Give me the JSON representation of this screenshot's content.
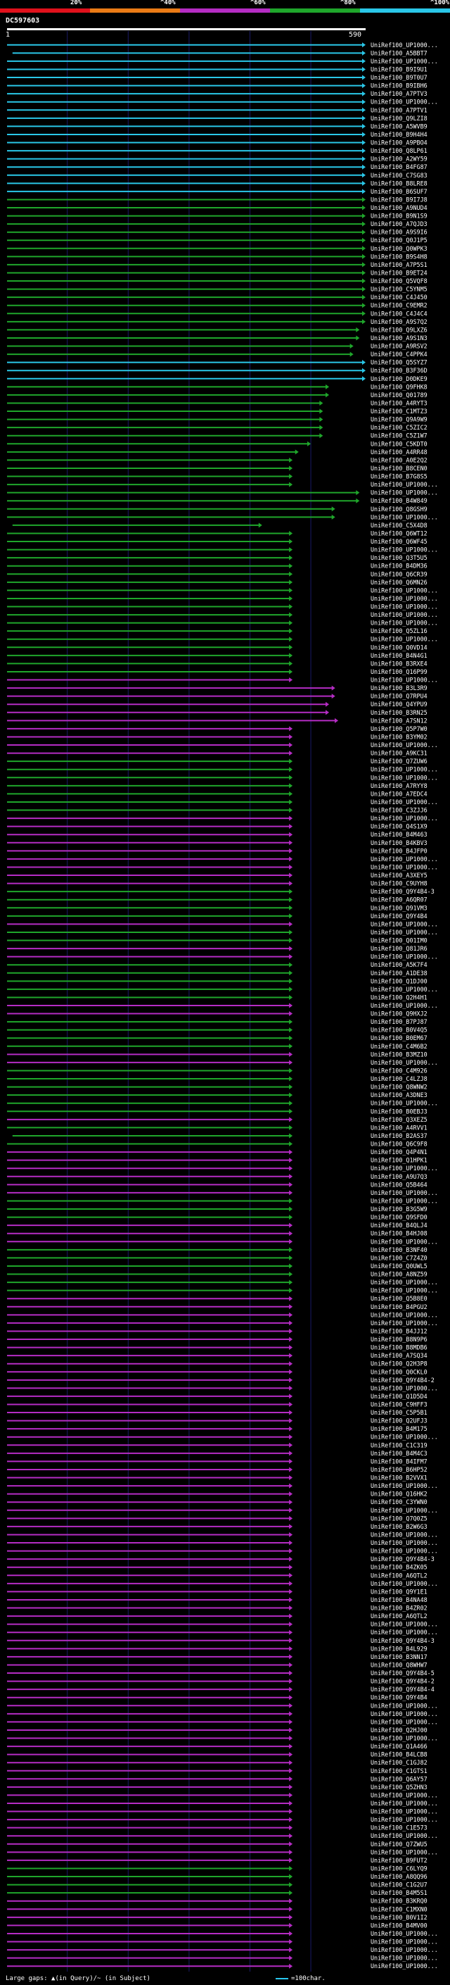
{
  "query_id": "DC597603",
  "legend": {
    "title": "Identity color scale",
    "segments": [
      {
        "label": "20%",
        "color": "#e0111c"
      },
      {
        "label": "^40%",
        "color": "#ea7b16"
      },
      {
        "label": "^60%",
        "color": "#b52cc4"
      },
      {
        "label": "^80%",
        "color": "#1fa62b"
      },
      {
        "label": "^100%",
        "color": "#2ac7e8"
      }
    ]
  },
  "footer": {
    "gap_text": "Large gaps: ▲(in Query)/~ (in Subject)",
    "scale_text": "=100char."
  },
  "chart_data": {
    "type": "alignment-overview",
    "title": "DC597603",
    "xlabel": "query position",
    "query_range": [
      1,
      590
    ],
    "start_label": "1",
    "end_label": "590",
    "colors": {
      "cyan": "#2ac7e8",
      "green": "#1fa62b",
      "magenta": "#b52cc4",
      "query": "#ffffff"
    },
    "hit_labels": [
      "UniRef100_UP1000...",
      "UniRef100_A5BBT7",
      "UniRef100_UP1000...",
      "UniRef100_B9I9U1",
      "UniRef100_B9T0U7",
      "UniRef100_B9IBH6",
      "UniRef100_A7PTV3",
      "UniRef100_UP1000...",
      "UniRef100_A7PTV1",
      "UniRef100_Q9LZI8",
      "UniRef100_A5WVB9",
      "UniRef100_B9H4H4",
      "UniRef100_A9PBO4",
      "UniRef100_Q8LP61",
      "UniRef100_A2WY59",
      "UniRef100_B4FG87",
      "UniRef100_C7SG83",
      "UniRef100_B8LRE8",
      "UniRef100_B6SUF7",
      "UniRef100_B9I7J8",
      "UniRef100_A9NUD4",
      "UniRef100_B9N1S9",
      "UniRef100_A7QJD3",
      "UniRef100_A9S9I6",
      "UniRef100_Q0J1P5",
      "UniRef100_Q0WPK3",
      "UniRef100_B9S4H8",
      "UniRef100_A7P5S1",
      "UniRef100_B9ET24",
      "UniRef100_Q5VQF8",
      "UniRef100_C5YNM5",
      "UniRef100_C4J450",
      "UniRef100_C9EMR2",
      "UniRef100_C4J4C4",
      "UniRef100_A9S7Q2",
      "UniRef100_Q9LXZ6",
      "UniRef100_A9S1N3",
      "UniRef100_A9RSV2",
      "UniRef100_C4PPK4",
      "UniRef100_Q5SYZ7",
      "UniRef100_B3F36D",
      "UniRef100_D0DKE9",
      "UniRef100_Q9FHK8",
      "UniRef100_Q01789",
      "UniRef100_A4RYT3",
      "UniRef100_C1MTZ3",
      "UniRef100_Q9A9W9",
      "UniRef100_C5ZIC2",
      "UniRef100_C5Z1W7",
      "UniRef100_C5KDT0",
      "UniRef100_A4RR48",
      "UniRef100_A0E2Q2",
      "UniRef100_B8CEN0",
      "UniRef100_B7G8S5",
      "UniRef100_UP1000...",
      "UniRef100_UP1000...",
      "UniRef100_B4W849",
      "UniRef100_Q8GSH9",
      "UniRef100_UP1000...",
      "UniRef100_C5X4D8",
      "UniRef100_Q6WT12",
      "UniRef100_Q6WF45",
      "UniRef100_UP1000...",
      "UniRef100_Q3T5U5",
      "UniRef100_B4DM36",
      "UniRef100_Q6CR39",
      "UniRef100_Q6MN26",
      "UniRef100_UP1000...",
      "UniRef100_UP1000...",
      "UniRef100_UP1000...",
      "UniRef100_UP1000...",
      "UniRef100_UP1000...",
      "UniRef100_Q5ZL16",
      "UniRef100_UP1000...",
      "UniRef100_Q0VD14",
      "UniRef100_B4N4G1",
      "UniRef100_B3RXE4",
      "UniRef100_Q16P99",
      "UniRef100_UP1000...",
      "UniRef100_B3L3R9",
      "UniRef100_Q7RPU4",
      "UniRef100_Q4YPU9",
      "UniRef100_B3RN25",
      "UniRef100_A7SN12",
      "UniRef100_Q5P7W0",
      "UniRef100_B3YM02",
      "UniRef100_UP1000...",
      "UniRef100_A9KC31",
      "UniRef100_Q7ZUW6",
      "UniRef100_UP1000...",
      "UniRef100_UP1000...",
      "UniRef100_A7RYY8",
      "UniRef100_A7EDC4",
      "UniRef100_UP1000...",
      "UniRef100_C3ZJJ6",
      "UniRef100_UP1000...",
      "UniRef100_Q4S1X9",
      "UniRef100_B4M463",
      "UniRef100_B4KBV3",
      "UniRef100_B4JFP0",
      "UniRef100_UP1000...",
      "UniRef100_UP1000...",
      "UniRef100_A3XEY5",
      "UniRef100_C9UYH8",
      "UniRef100_Q9Y4B4-3",
      "UniRef100_A6QR07",
      "UniRef100_Q91VM3",
      "UniRef100_Q9Y4B4",
      "UniRef100_UP1000...",
      "UniRef100_UP1000...",
      "UniRef100_Q01IM0",
      "UniRef100_Q81JR6",
      "UniRef100_UP1000...",
      "UniRef100_A5K7F4",
      "UniRef100_A1DE38",
      "UniRef100_Q1DJ00",
      "UniRef100_UP1000...",
      "UniRef100_Q2H4H1",
      "UniRef100_UP1000...",
      "UniRef100_Q9HXJ2",
      "UniRef100_B7PJ87",
      "UniRef100_B0V4Q5",
      "UniRef100_B0EM67",
      "UniRef100_C4M6B2",
      "UniRef100_B3MZ10",
      "UniRef100_UP1000...",
      "UniRef100_C4M926",
      "UniRef100_C4LZJ8",
      "UniRef100_Q8WNW2",
      "UniRef100_A3DNE3",
      "UniRef100_UP1000...",
      "UniRef100_B0EBJ3",
      "UniRef100_Q3XEZ5",
      "UniRef100_A4RVV1",
      "UniRef100_B2AS37",
      "UniRef100_Q6C9F8",
      "UniRef100_Q4P4N1",
      "UniRef100_Q1HPK1",
      "UniRef100_UP1000...",
      "UniRef100_A9U7Q3",
      "UniRef100_Q5B464",
      "UniRef100_UP1000...",
      "UniRef100_UP1000...",
      "UniRef100_B3G5W9",
      "UniRef100_Q9SFD0",
      "UniRef100_B4QLJ4",
      "UniRef100_B4HJ08",
      "UniRef100_UP1000...",
      "UniRef100_B3NF40",
      "UniRef100_C7Z4Z0",
      "UniRef100_Q0UWL5",
      "UniRef100_A8NZ59",
      "UniRef100_UP1000...",
      "UniRef100_UP1000...",
      "UniRef100_Q5B8E0",
      "UniRef100_B4PGU2",
      "UniRef100_UP1000...",
      "UniRef100_UP1000...",
      "UniRef100_B4JJ12",
      "UniRef100_B8N9P6",
      "UniRef100_B8MDB6",
      "UniRef100_A7SQ34",
      "UniRef100_Q2H3P8",
      "UniRef100_Q0CKL0",
      "UniRef100_Q9Y4B4-2",
      "UniRef100_UP1000...",
      "UniRef100_Q1D5D4",
      "UniRef100_C9HFF3",
      "UniRef100_C5P5B1",
      "UniRef100_Q2UFJ3",
      "UniRef100_B4M175",
      "UniRef100_UP1000...",
      "UniRef100_C1C319",
      "UniRef100_B4M4C3",
      "UniRef100_B4IFM7",
      "UniRef100_B6HP52",
      "UniRef100_B2VVX1",
      "UniRef100_UP1000...",
      "UniRef100_Q16HK2",
      "UniRef100_C3YWN0",
      "UniRef100_UP1000...",
      "UniRef100_Q7Q0Z5",
      "UniRef100_B2W6G3",
      "UniRef100_UP1000...",
      "UniRef100_UP1000...",
      "UniRef100_UP1000...",
      "UniRef100_Q9Y4B4-3",
      "UniRef100_B4ZK05",
      "UniRef100_A6QTL2",
      "UniRef100_UP1000...",
      "UniRef100_Q9Y1E1",
      "UniRef100_B4NA48",
      "UniRef100_B4ZR02",
      "UniRef100_A6QTL2",
      "UniRef100_UP1000...",
      "UniRef100_UP1000...",
      "UniRef100_Q9Y4B4-3",
      "UniRef100_B4L929",
      "UniRef100_B3NN17",
      "UniRef100_Q8WHW7",
      "UniRef100_Q9Y4B4-5",
      "UniRef100_Q9Y4B4-2",
      "UniRef100_Q9Y4B4-4",
      "UniRef100_Q9Y4B4",
      "UniRef100_UP1000...",
      "UniRef100_UP1000...",
      "UniRef100_UP1000...",
      "UniRef100_Q2HJ00",
      "UniRef100_UP1000...",
      "UniRef100_Q1A466",
      "UniRef100_B4LCB8",
      "UniRef100_C1GJ82",
      "UniRef100_C1GTS1",
      "UniRef100_Q6AY57",
      "UniRef100_Q5ZHN3",
      "UniRef100_UP1000...",
      "UniRef100_UP1000...",
      "UniRef100_UP1000...",
      "UniRef100_UP1000...",
      "UniRef100_C1E573",
      "UniRef100_UP1000...",
      "UniRef100_Q7ZWU5",
      "UniRef100_UP1000...",
      "UniRef100_B9FUT2",
      "UniRef100_C6LYQ9",
      "UniRef100_A8QQ96",
      "UniRef100_C1G2U7",
      "UniRef100_B4M5S1",
      "UniRef100_B3KRQ0",
      "UniRef100_C1MXN0",
      "UniRef100_B0V1I2",
      "UniRef100_B4MV00",
      "UniRef100_UP1000...",
      "UniRef100_UP1000...",
      "UniRef100_UP1000...",
      "UniRef100_UP1000...",
      "UniRef100_UP1000..."
    ],
    "hit_colors": [
      "cyan",
      "cyan",
      "cyan",
      "cyan",
      "cyan",
      "cyan",
      "cyan",
      "cyan",
      "cyan",
      "cyan",
      "cyan",
      "cyan",
      "cyan",
      "cyan",
      "cyan",
      "cyan",
      "cyan",
      "cyan",
      "cyan",
      "green",
      "green",
      "green",
      "green",
      "green",
      "green",
      "green",
      "green",
      "green",
      "green",
      "green",
      "green",
      "green",
      "green",
      "green",
      "green",
      "green",
      "green",
      "green",
      "green",
      "cyan",
      "cyan",
      "cyan",
      "green",
      "green",
      "green",
      "green",
      "green",
      "green",
      "green",
      "green",
      "green",
      "green",
      "green",
      "green",
      "green",
      "green",
      "green",
      "green",
      "green",
      "green",
      "green",
      "green",
      "green",
      "green",
      "green",
      "green",
      "green",
      "green",
      "green",
      "green",
      "green",
      "green",
      "green",
      "green",
      "green",
      "green",
      "green",
      "green",
      "magenta",
      "magenta",
      "magenta",
      "magenta",
      "magenta",
      "magenta",
      "magenta",
      "magenta",
      "magenta",
      "magenta",
      "green",
      "green",
      "green",
      "green",
      "green",
      "green",
      "green",
      "magenta",
      "magenta",
      "magenta",
      "magenta",
      "magenta",
      "magenta",
      "magenta",
      "magenta",
      "magenta",
      "green",
      "green",
      "green",
      "green",
      "magenta",
      "green",
      "green",
      "magenta",
      "magenta",
      "green",
      "green",
      "green",
      "green",
      "green",
      "magenta",
      "magenta",
      "green",
      "green",
      "green",
      "green",
      "magenta",
      "magenta",
      "green",
      "green",
      "green",
      "green",
      "green",
      "green",
      "magenta",
      "green",
      "green",
      "green",
      "magenta",
      "magenta",
      "magenta",
      "magenta",
      "magenta",
      "magenta",
      "green",
      "green",
      "green",
      "magenta",
      "magenta",
      "magenta",
      "green",
      "green",
      "green",
      "green",
      "green",
      "green",
      "magenta",
      "magenta",
      "magenta",
      "magenta",
      "magenta",
      "magenta",
      "magenta",
      "magenta",
      "magenta",
      "magenta",
      "magenta",
      "magenta",
      "magenta",
      "magenta",
      "magenta",
      "magenta",
      "magenta",
      "magenta",
      "magenta",
      "magenta",
      "magenta",
      "magenta",
      "magenta",
      "magenta",
      "magenta",
      "magenta",
      "magenta",
      "magenta",
      "magenta",
      "magenta",
      "magenta",
      "magenta",
      "magenta",
      "magenta",
      "magenta",
      "magenta",
      "magenta",
      "magenta",
      "magenta",
      "magenta",
      "magenta",
      "magenta",
      "magenta",
      "magenta",
      "magenta",
      "magenta",
      "magenta",
      "magenta",
      "magenta",
      "magenta",
      "magenta",
      "magenta",
      "magenta",
      "magenta",
      "magenta",
      "magenta",
      "magenta",
      "magenta",
      "magenta",
      "magenta",
      "magenta",
      "magenta",
      "magenta",
      "magenta",
      "magenta",
      "magenta",
      "magenta",
      "magenta",
      "magenta",
      "magenta",
      "green",
      "green",
      "green",
      "green",
      "magenta",
      "magenta",
      "magenta",
      "magenta",
      "magenta",
      "magenta",
      "magenta",
      "magenta",
      "magenta",
      "magenta",
      "magenta",
      "magenta",
      "magenta"
    ],
    "hit_starts": [
      1,
      10,
      1,
      1,
      1,
      1,
      1,
      1,
      1,
      1,
      1,
      1,
      1,
      1,
      1,
      1,
      1,
      1,
      1,
      1,
      1,
      1,
      1,
      1,
      1,
      1,
      1,
      1,
      1,
      1,
      1,
      1,
      1,
      1,
      1,
      1,
      1,
      1,
      1,
      1,
      1,
      1,
      1,
      1,
      1,
      1,
      1,
      1,
      1,
      1,
      1,
      1,
      1,
      1,
      1,
      1,
      1,
      1,
      1,
      10,
      1,
      1,
      1,
      1,
      1,
      1,
      1,
      1,
      1,
      1,
      1,
      1,
      1,
      1,
      1,
      1,
      1,
      1,
      1,
      1,
      1,
      1,
      1,
      1,
      1,
      1,
      1,
      1,
      1,
      1,
      1,
      1,
      1,
      1,
      1,
      1,
      1,
      1,
      1,
      1,
      1,
      1,
      1,
      1,
      1,
      1,
      1,
      1,
      1,
      1,
      1,
      1,
      1,
      1,
      1,
      1,
      1,
      1,
      1,
      1,
      1,
      1,
      1,
      1,
      1,
      1,
      1,
      1,
      1,
      1,
      1,
      1,
      1,
      1,
      10,
      1,
      1,
      1,
      1,
      1,
      1,
      1,
      1,
      1,
      1,
      1,
      1,
      1,
      1,
      1,
      1,
      1,
      1,
      1,
      1,
      1,
      1,
      1,
      1,
      1,
      1,
      1,
      1,
      1,
      1,
      1,
      1,
      1,
      1,
      1,
      1,
      1,
      1,
      1,
      1,
      1,
      1,
      1,
      1,
      1,
      1,
      1,
      1,
      1,
      1,
      1,
      1,
      1,
      1,
      1,
      1,
      1,
      1,
      1,
      1,
      1,
      1,
      1,
      1,
      1,
      1,
      1,
      1,
      1,
      1,
      1,
      1,
      1,
      1,
      1,
      1,
      1,
      1,
      1,
      1,
      1,
      1,
      1,
      1,
      1,
      1,
      1,
      1,
      1,
      1,
      1,
      1,
      1,
      1,
      1,
      1,
      1,
      1,
      1,
      1,
      1,
      1,
      1,
      1,
      1,
      1,
      1,
      1,
      1,
      1,
      1,
      1,
      1,
      1,
      1,
      1,
      1,
      1
    ],
    "hit_ends": [
      590,
      590,
      590,
      590,
      590,
      590,
      590,
      590,
      590,
      590,
      590,
      590,
      590,
      590,
      590,
      590,
      590,
      590,
      590,
      590,
      590,
      590,
      590,
      590,
      590,
      590,
      590,
      590,
      590,
      590,
      590,
      590,
      590,
      590,
      590,
      580,
      580,
      570,
      570,
      590,
      590,
      590,
      530,
      530,
      520,
      520,
      520,
      520,
      520,
      500,
      480,
      470,
      470,
      470,
      470,
      580,
      580,
      540,
      540,
      420,
      470,
      470,
      470,
      470,
      470,
      470,
      470,
      470,
      470,
      470,
      470,
      470,
      470,
      470,
      470,
      470,
      470,
      470,
      470,
      540,
      540,
      530,
      530,
      545,
      470,
      470,
      470,
      470,
      470,
      470,
      470,
      470,
      470,
      470,
      470,
      470,
      470,
      470,
      470,
      470,
      470,
      470,
      470,
      470,
      470,
      470,
      470,
      470,
      470,
      470,
      470,
      470,
      470,
      470,
      470,
      470,
      470,
      470,
      470,
      470,
      470,
      470,
      470,
      470,
      470,
      470,
      470,
      470,
      470,
      470,
      470,
      470,
      470,
      470,
      470,
      470,
      470,
      470,
      470,
      470,
      470,
      470,
      470,
      470,
      470,
      470,
      470,
      470,
      470,
      470,
      470,
      470,
      470,
      470,
      470,
      470,
      470,
      470,
      470,
      470,
      470,
      470,
      470,
      470,
      470,
      470,
      470,
      470,
      470,
      470,
      470,
      470,
      470,
      470,
      470,
      470,
      470,
      470,
      470,
      470,
      470,
      470,
      470,
      470,
      470,
      470,
      470,
      470,
      470,
      470,
      470,
      470,
      470,
      470,
      470,
      470,
      470,
      470,
      470,
      470,
      470,
      470,
      470,
      470,
      470,
      470,
      470,
      470,
      470,
      470,
      470,
      470,
      470,
      470,
      470,
      470,
      470,
      470,
      470,
      470,
      470,
      470,
      470,
      470,
      470,
      470,
      470,
      470,
      470,
      470,
      470,
      470,
      470,
      470,
      470,
      470,
      470,
      470,
      470,
      470,
      470,
      470,
      470,
      470,
      470
    ]
  }
}
